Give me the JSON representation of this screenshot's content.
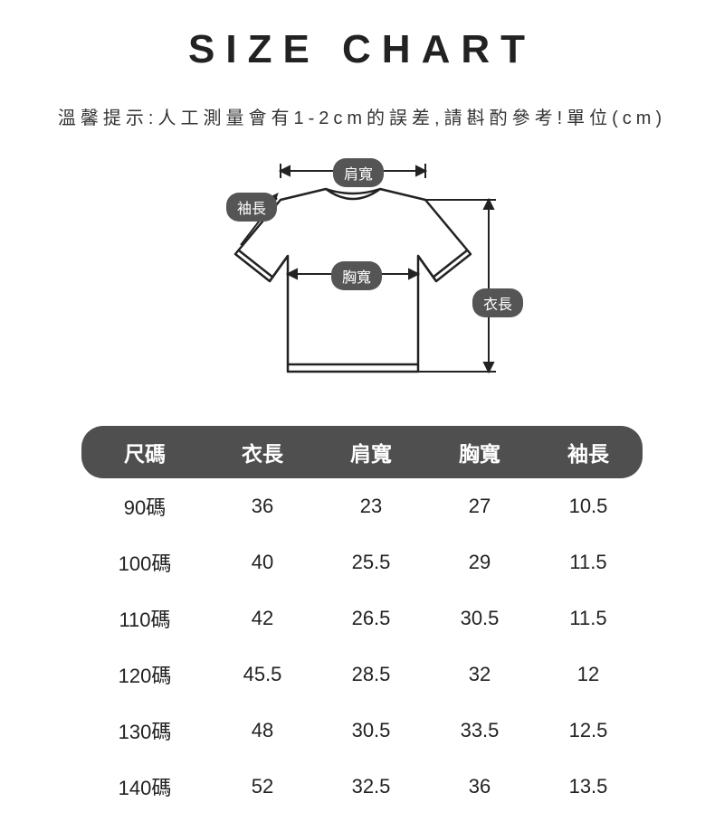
{
  "title": "SIZE CHART",
  "subtitle": "溫馨提示:人工測量會有1-2cm的誤差,請斟酌參考!單位(cm)",
  "diagram": {
    "labels": {
      "shoulder": "肩寬",
      "sleeve": "袖長",
      "chest": "胸寬",
      "length": "衣長"
    },
    "shirt_stroke": "#222222",
    "shirt_fill": "#ffffff",
    "pill_bg": "#555555",
    "pill_text_color": "#ffffff",
    "arrow_color": "#222222"
  },
  "size_table": {
    "header_bg": "#4f4f4f",
    "header_text_color": "#ffffff",
    "columns": [
      "尺碼",
      "衣長",
      "肩寬",
      "胸寬",
      "袖長"
    ],
    "rows": [
      [
        "90碼",
        "36",
        "23",
        "27",
        "10.5"
      ],
      [
        "100碼",
        "40",
        "25.5",
        "29",
        "11.5"
      ],
      [
        "110碼",
        "42",
        "26.5",
        "30.5",
        "11.5"
      ],
      [
        "120碼",
        "45.5",
        "28.5",
        "32",
        "12"
      ],
      [
        "130碼",
        "48",
        "30.5",
        "33.5",
        "12.5"
      ],
      [
        "140碼",
        "52",
        "32.5",
        "36",
        "13.5"
      ]
    ]
  }
}
